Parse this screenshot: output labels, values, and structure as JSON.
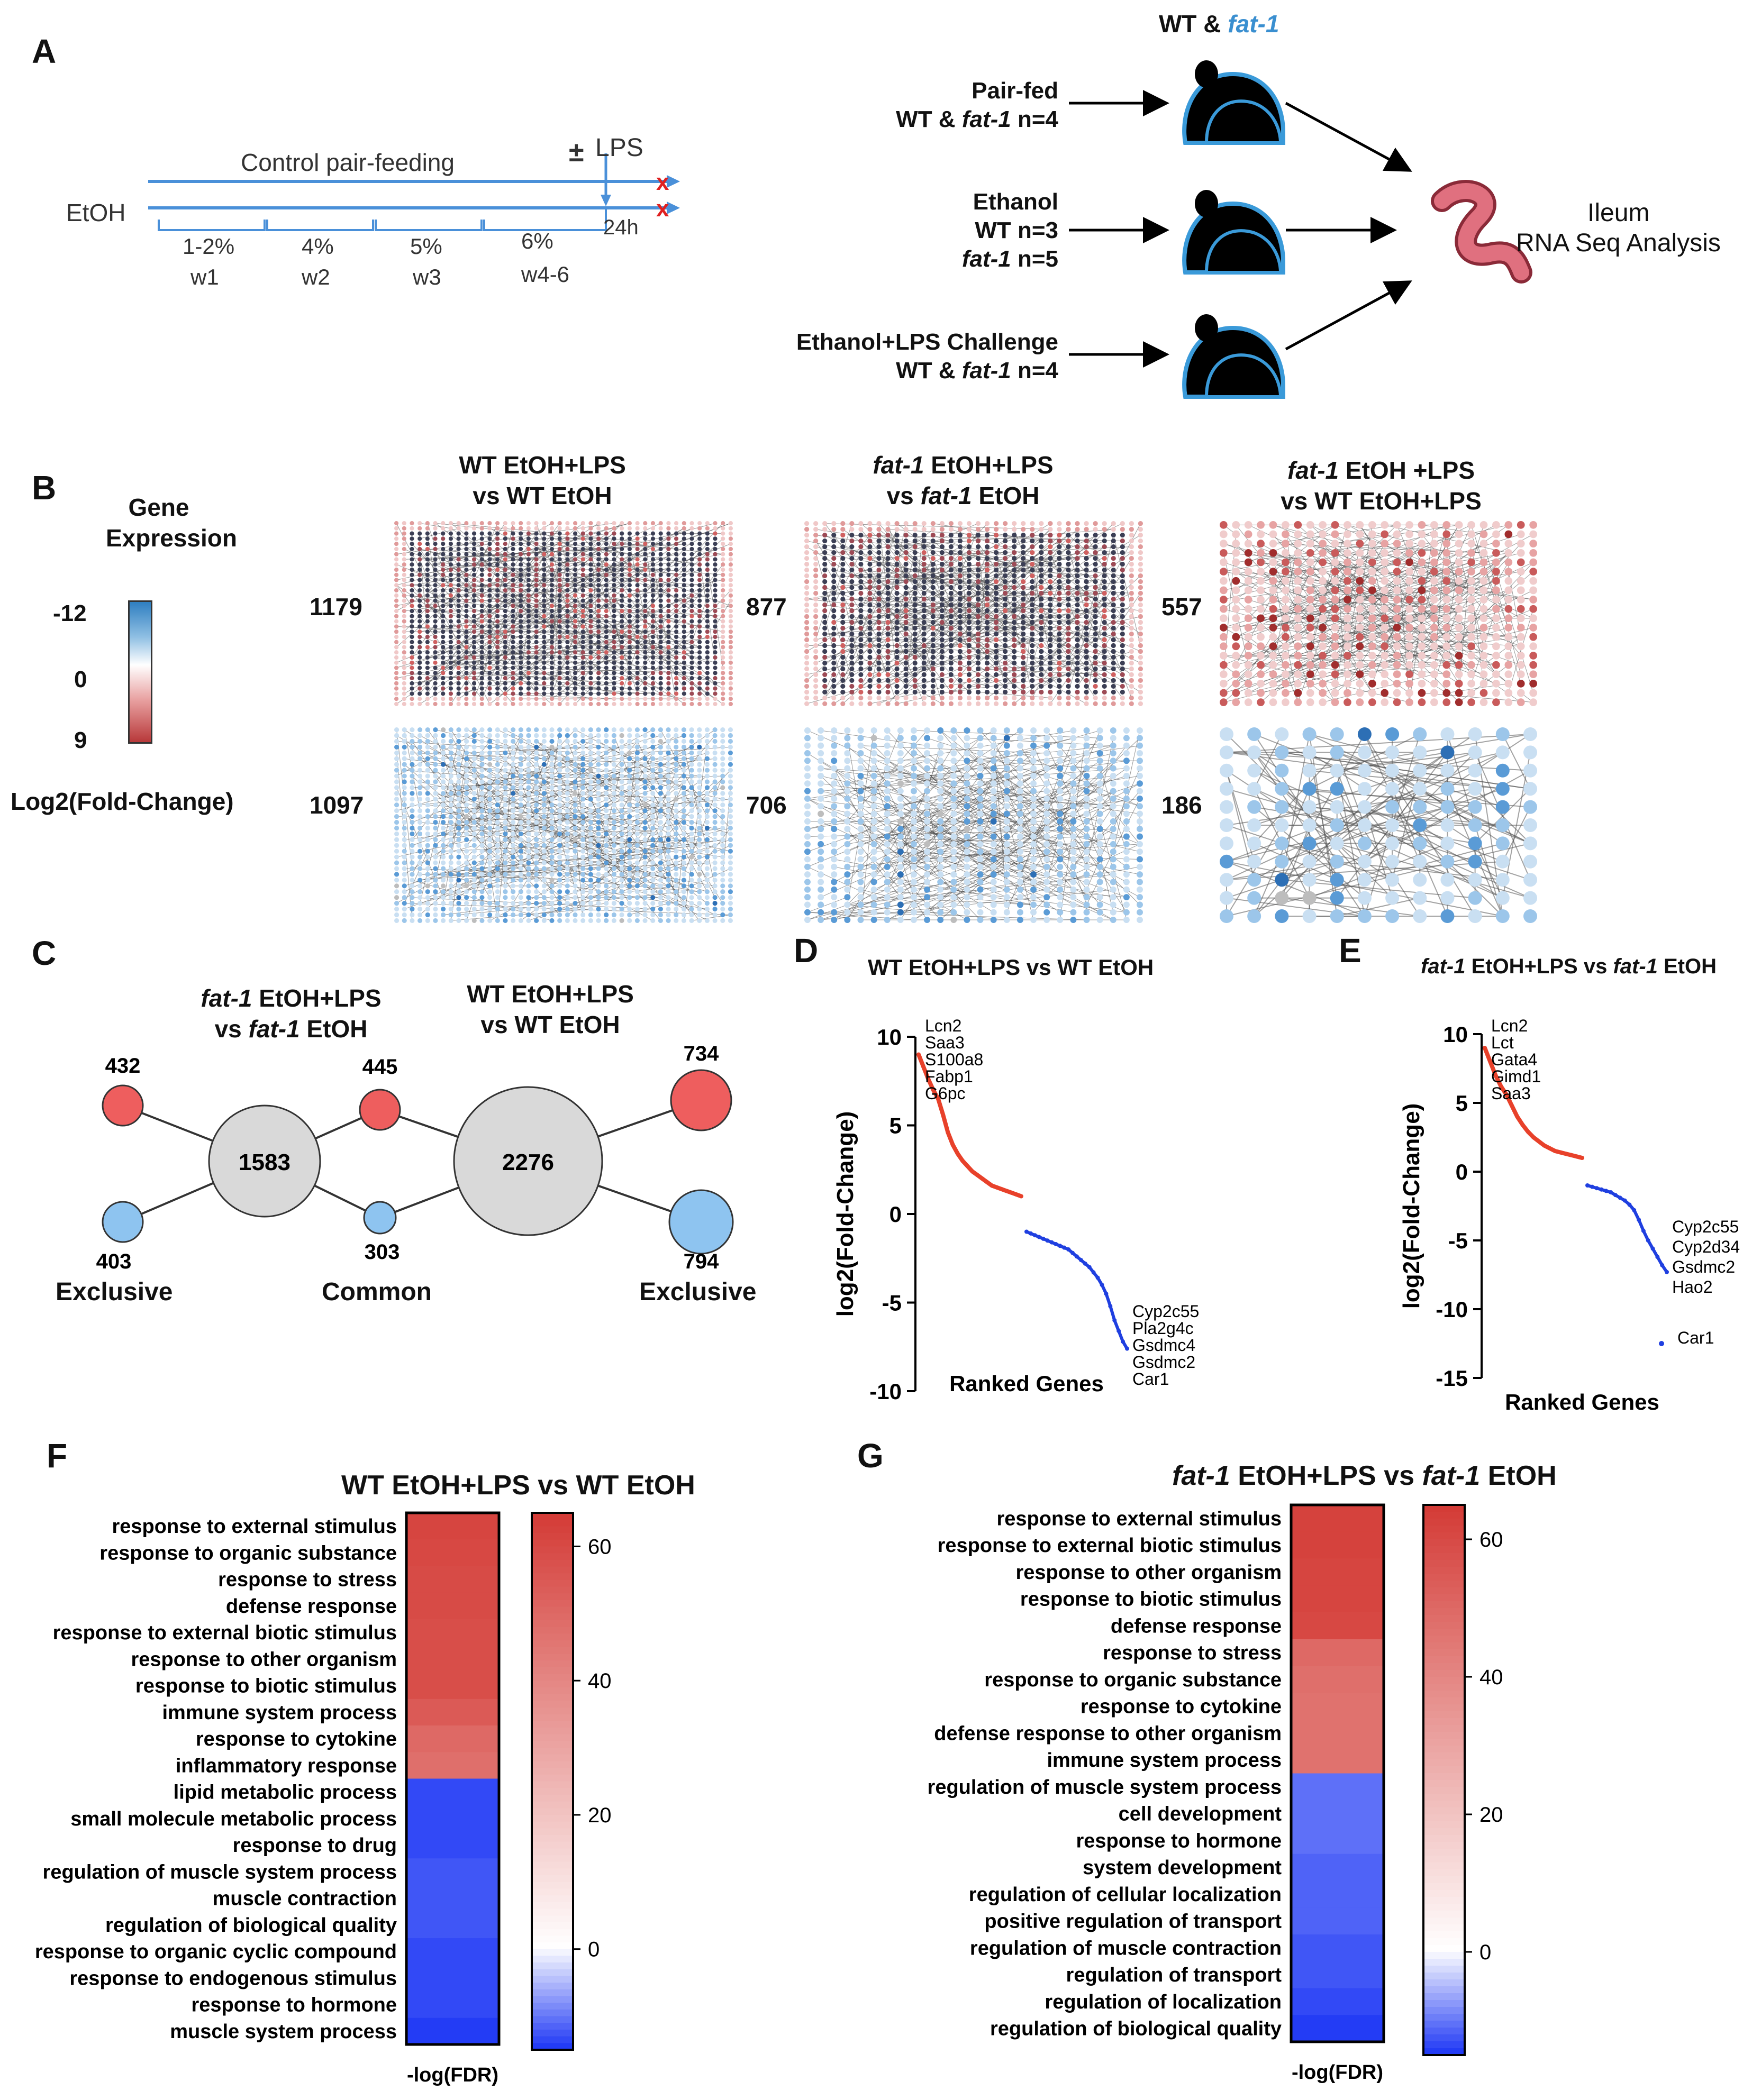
{
  "panels": {
    "A": "A",
    "B": "B",
    "C": "C",
    "D": "D",
    "E": "E",
    "F": "F",
    "G": "G"
  },
  "timeline": {
    "control_label": "Control pair-feeding",
    "etoh_label": "EtOH",
    "lps_pm": "±",
    "lps_label": "LPS",
    "end_marker": "x",
    "time_label": "24h",
    "doses": [
      "1-2%",
      "4%",
      "5%",
      "6%"
    ],
    "weeks": [
      "w1",
      "w2",
      "w3",
      "w4-6"
    ]
  },
  "design": {
    "header_wt": "WT &",
    "header_fat": "fat-1",
    "groups": [
      {
        "title": "Pair-fed",
        "line1_pre": "WT & ",
        "line1_it": "fat-1",
        "line1_post": " n=4"
      },
      {
        "title": "Ethanol",
        "line1_pre": "WT n=3",
        "line1_it": "",
        "line1_post": "",
        "line2_it": "fat-1",
        "line2_post": " n=5"
      },
      {
        "title": "Ethanol+LPS Challenge",
        "line1_pre": "WT & ",
        "line1_it": "fat-1",
        "line1_post": " n=4"
      }
    ],
    "outcome_line1": "Ileum",
    "outcome_line2": "RNA Seq Analysis"
  },
  "networks": {
    "legend_title_1": "Gene",
    "legend_title_2": "Expression",
    "legend_ticks": [
      "-12",
      "0",
      "9"
    ],
    "legend_axis": "Log2(Fold-Change)",
    "colors": {
      "up": "#c0403f",
      "down": "#2f7fc1",
      "mid": "#ffffff"
    },
    "comparisons": [
      {
        "title_it": "",
        "title_1": "WT EtOH+LPS",
        "title_2": "vs WT EtOH",
        "title_2_it": "",
        "up_count": "1179",
        "down_count": "1097"
      },
      {
        "title_it": "fat-1",
        "title_1": " EtOH+LPS",
        "title_2": " EtOH",
        "title_2_pre": "vs ",
        "title_2_it": "fat-1",
        "up_count": "877",
        "down_count": "706"
      },
      {
        "title_it": "fat-1",
        "title_1": " EtOH +LPS",
        "title_2": "vs WT EtOH+LPS",
        "title_2_it": "",
        "up_count": "557",
        "down_count": "186"
      }
    ]
  },
  "venn": {
    "left_title_it": "fat-1",
    "left_title_1": " EtOH+LPS",
    "left_title_2_pre": "vs ",
    "left_title_2_it": "fat-1",
    "left_title_2_post": " EtOH",
    "right_title_1": "WT EtOH+LPS",
    "right_title_2": "vs WT EtOH",
    "left_total": "1583",
    "right_total": "2276",
    "left_up": "432",
    "left_down": "403",
    "common_up": "445",
    "common_down": "303",
    "right_up": "734",
    "right_down": "794",
    "label_left": "Exclusive",
    "label_common": "Common",
    "label_right": "Exclusive"
  },
  "chart_data": [
    {
      "type": "scatter",
      "title": "WT EtOH+LPS vs WT EtOH",
      "xlabel": "Ranked Genes",
      "ylabel": "log2(Fold-Change)",
      "ylim": [
        -10,
        10
      ],
      "yticks": [
        "10",
        "5",
        "0",
        "-5",
        "-10"
      ],
      "series": [
        {
          "name": "up",
          "color": "#e8412a",
          "values": [
            9.0,
            8.3,
            7.6,
            7.0,
            6.5,
            5.6,
            4.6,
            3.9,
            3.4,
            3.0,
            2.7,
            2.4,
            2.2,
            2.0,
            1.8,
            1.6,
            1.5,
            1.4,
            1.3,
            1.2,
            1.1,
            1.0
          ]
        },
        {
          "name": "down",
          "color": "#1f3fe0",
          "values": [
            -1.0,
            -1.1,
            -1.2,
            -1.3,
            -1.4,
            -1.5,
            -1.6,
            -1.7,
            -1.8,
            -1.9,
            -2.0,
            -2.2,
            -2.4,
            -2.6,
            -2.8,
            -3.0,
            -3.3,
            -3.6,
            -4.0,
            -4.5,
            -5.2,
            -6.0,
            -6.6,
            -7.2,
            -7.6
          ]
        }
      ],
      "annotations_up": [
        "Lcn2",
        "Saa3",
        "S100a8",
        "Fabp1",
        "G6pc"
      ],
      "annotations_down": [
        "Cyp2c55",
        "Pla2g4c",
        "Gsdmc4",
        "Gsdmc2",
        "Car1"
      ]
    },
    {
      "type": "scatter",
      "title_it": "fat-1",
      "title": " EtOH+LPS vs ",
      "title_it2": "fat-1",
      "title_post": " EtOH",
      "xlabel": "Ranked Genes",
      "ylabel": "log2(Fold-Change)",
      "ylim": [
        -15,
        10
      ],
      "yticks": [
        "10",
        "5",
        "0",
        "-5",
        "-10",
        "-15"
      ],
      "series": [
        {
          "name": "up",
          "color": "#e8412a",
          "values": [
            9.0,
            8.0,
            7.0,
            6.2,
            5.6,
            4.8,
            4.0,
            3.4,
            2.9,
            2.5,
            2.2,
            1.9,
            1.7,
            1.5,
            1.4,
            1.3,
            1.2,
            1.1,
            1.0
          ]
        },
        {
          "name": "down",
          "color": "#1f3fe0",
          "values": [
            -1.0,
            -1.1,
            -1.2,
            -1.3,
            -1.4,
            -1.5,
            -1.7,
            -1.9,
            -2.1,
            -2.4,
            -2.8,
            -3.5,
            -4.3,
            -5.0,
            -5.6,
            -6.2,
            -6.8,
            -7.3
          ]
        },
        {
          "name": "outlier",
          "color": "#1f3fe0",
          "values": [
            -12.5
          ]
        }
      ],
      "annotations_up": [
        "Lcn2",
        "Lct",
        "Gata4",
        "Gimd1",
        "Saa3"
      ],
      "annotations_down": [
        "Cyp2c55",
        "Cyp2d34",
        "Gsdmc2",
        "Hao2",
        "Car1"
      ]
    },
    {
      "type": "heatmap",
      "title": "WT EtOH+LPS vs WT EtOH",
      "xlabel": "-log(FDR)",
      "colorbar_ticks": [
        "60",
        "40",
        "20",
        "0"
      ],
      "clim": [
        -15,
        65
      ],
      "categories": [
        "response to external stimulus",
        "response to organic substance",
        "response to stress",
        "defense response",
        "response to external biotic stimulus",
        "response to other organism",
        "response to biotic stimulus",
        "immune system process",
        "response to cytokine",
        "inflammatory response",
        "lipid metabolic process",
        "small molecule metabolic process",
        "response to drug",
        "regulation of muscle system process",
        "muscle contraction",
        "regulation of biological quality",
        "response to organic cyclic compound",
        "response to endogenous stimulus",
        "response to hormone",
        "muscle system process"
      ],
      "values": [
        62,
        61,
        60,
        60,
        59,
        59,
        59,
        55,
        50,
        48,
        -14,
        -14,
        -14,
        -13,
        -13,
        -13,
        -14,
        -14,
        -14,
        -15
      ]
    },
    {
      "type": "heatmap",
      "title_it": "fat-1",
      "title": " EtOH+LPS vs ",
      "title_it2": "fat-1",
      "title_post": " EtOH",
      "xlabel": "-log(FDR)",
      "colorbar_ticks": [
        "60",
        "40",
        "20",
        "0"
      ],
      "clim": [
        -15,
        65
      ],
      "categories": [
        "response to external stimulus",
        "response to external biotic stimulus",
        "response to other organism",
        "response to biotic stimulus",
        "defense response",
        "response to stress",
        "response to organic substance",
        "response to cytokine",
        "defense response to other organism",
        "immune system process",
        "regulation of muscle system process",
        "cell development",
        "response to hormone",
        "system development",
        "regulation of cellular localization",
        "positive regulation of transport",
        "regulation of muscle contraction",
        "regulation of transport",
        "regulation of localization",
        "regulation of biological quality"
      ],
      "values": [
        63,
        63,
        62,
        62,
        61,
        50,
        48,
        47,
        47,
        47,
        -11,
        -11,
        -11,
        -12,
        -12,
        -12,
        -13,
        -13,
        -14,
        -15
      ]
    }
  ]
}
